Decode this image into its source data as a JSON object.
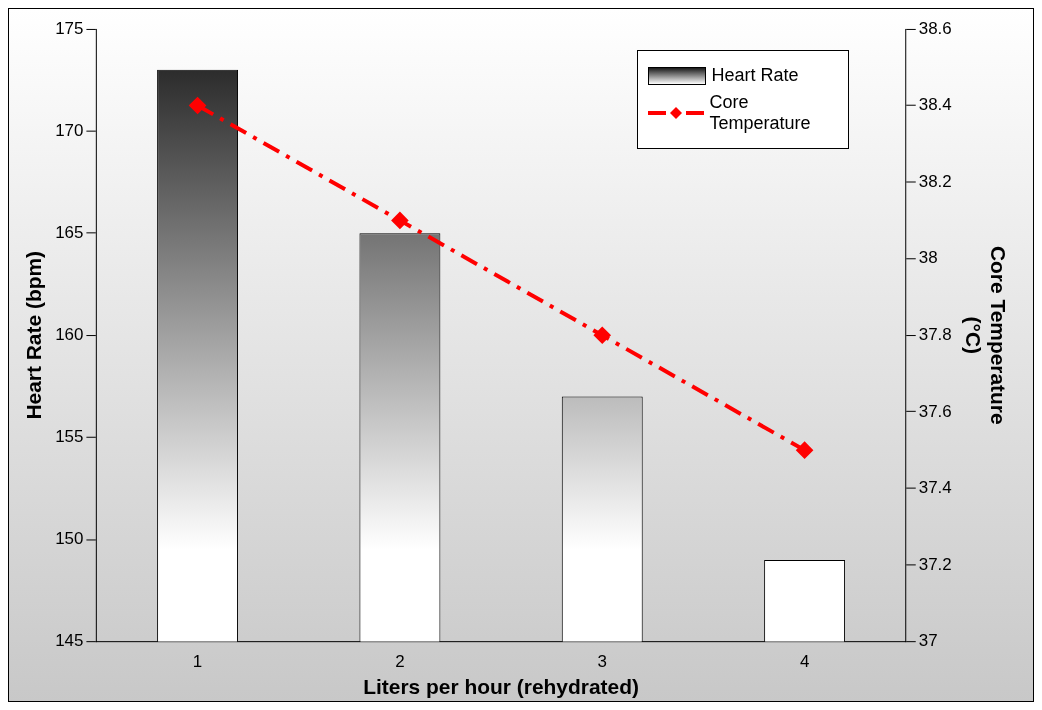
{
  "chart_data": {
    "type": "bar",
    "xlabel": "Liters per hour (rehydrated)",
    "ylabel": "Heart Rate (bpm)",
    "y2label": "Core Temperature (°C)",
    "categories": [
      "1",
      "2",
      "3",
      "4"
    ],
    "series": [
      {
        "name": "Heart Rate",
        "color": "#1a1a1a",
        "values": [
          173,
          165,
          157,
          149
        ]
      },
      {
        "name": "Core Temperature",
        "type": "line",
        "axis": "y2",
        "color": "#ff0000",
        "values": [
          38.4,
          38.1,
          37.8,
          37.5
        ],
        "marker": "diamond",
        "line_style": "dashed"
      }
    ],
    "ylim": [
      145,
      175
    ],
    "yticks": [
      145,
      150,
      155,
      160,
      165,
      170,
      175
    ],
    "y2lim": [
      37,
      38.6
    ],
    "y2ticks": [
      37,
      37.2,
      37.4,
      37.6,
      37.8,
      38,
      38.2,
      38.4,
      38.6
    ],
    "grid": false,
    "legend": "top right"
  }
}
